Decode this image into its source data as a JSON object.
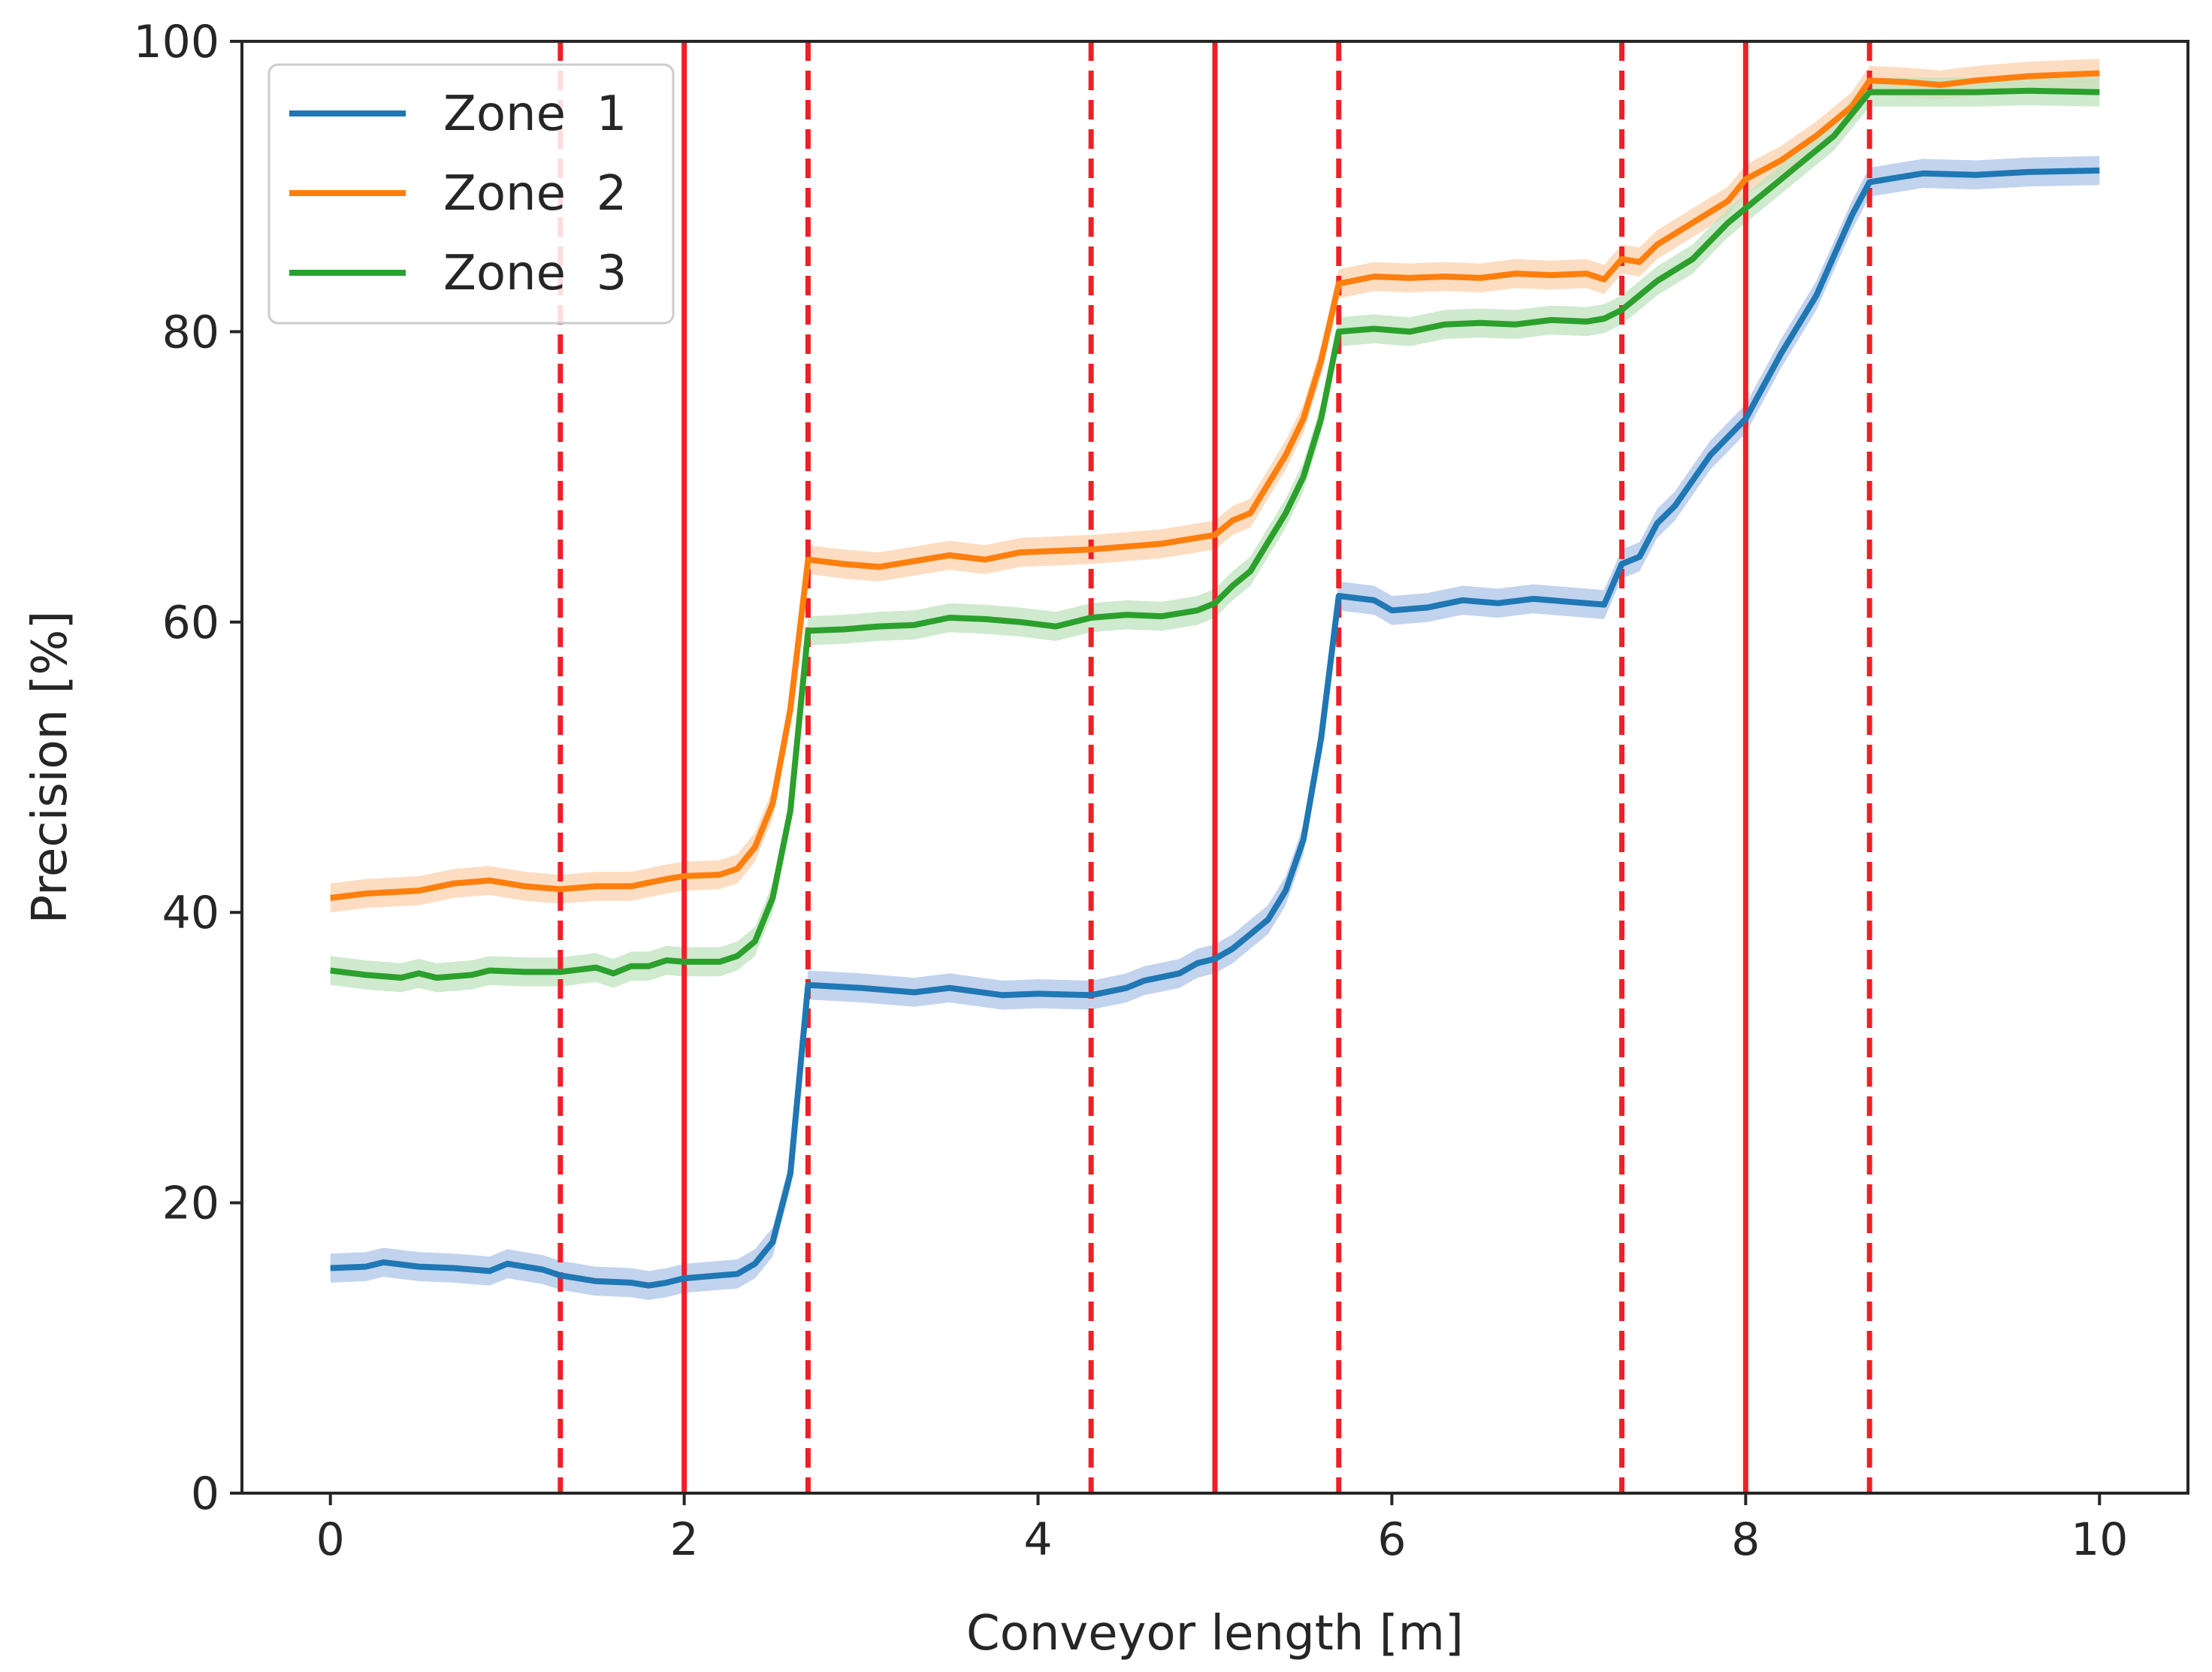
{
  "chart_data": {
    "type": "line",
    "xlabel": "Conveyor length [m]",
    "ylabel": "Precision [%]",
    "xlim": [
      -0.5,
      10.5
    ],
    "ylim": [
      0,
      100
    ],
    "xticks": [
      0,
      2,
      4,
      6,
      8,
      10
    ],
    "yticks": [
      0,
      20,
      40,
      60,
      80,
      100
    ],
    "grid": false,
    "legend_position": "top-left",
    "band_halfwidth": 1.0,
    "series": [
      {
        "name": "Zone  1",
        "color": "#1f77b4",
        "band_color": "#aec4e8",
        "points": [
          [
            0,
            15.5
          ],
          [
            0.2,
            15.6
          ],
          [
            0.3,
            15.9
          ],
          [
            0.5,
            15.6
          ],
          [
            0.7,
            15.5
          ],
          [
            0.9,
            15.3
          ],
          [
            1.0,
            15.8
          ],
          [
            1.2,
            15.4
          ],
          [
            1.3,
            15.0
          ],
          [
            1.5,
            14.6
          ],
          [
            1.7,
            14.5
          ],
          [
            1.8,
            14.3
          ],
          [
            1.9,
            14.5
          ],
          [
            2.0,
            14.8
          ],
          [
            2.2,
            15.0
          ],
          [
            2.3,
            15.1
          ],
          [
            2.4,
            15.8
          ],
          [
            2.5,
            17.3
          ],
          [
            2.6,
            22.0
          ],
          [
            2.7,
            35.0
          ],
          [
            3.0,
            34.8
          ],
          [
            3.3,
            34.5
          ],
          [
            3.5,
            34.8
          ],
          [
            3.8,
            34.3
          ],
          [
            4.0,
            34.4
          ],
          [
            4.3,
            34.3
          ],
          [
            4.5,
            34.8
          ],
          [
            4.6,
            35.3
          ],
          [
            4.8,
            35.8
          ],
          [
            4.9,
            36.5
          ],
          [
            5.0,
            36.8
          ],
          [
            5.1,
            37.5
          ],
          [
            5.2,
            38.5
          ],
          [
            5.3,
            39.5
          ],
          [
            5.4,
            41.5
          ],
          [
            5.5,
            45.0
          ],
          [
            5.6,
            52.0
          ],
          [
            5.7,
            61.8
          ],
          [
            5.9,
            61.5
          ],
          [
            6.0,
            60.8
          ],
          [
            6.2,
            61.0
          ],
          [
            6.4,
            61.5
          ],
          [
            6.6,
            61.3
          ],
          [
            6.8,
            61.6
          ],
          [
            7.0,
            61.4
          ],
          [
            7.2,
            61.2
          ],
          [
            7.3,
            64.0
          ],
          [
            7.4,
            64.5
          ],
          [
            7.5,
            66.8
          ],
          [
            7.6,
            68.0
          ],
          [
            7.8,
            71.5
          ],
          [
            8.0,
            74.0
          ],
          [
            8.2,
            78.5
          ],
          [
            8.4,
            82.5
          ],
          [
            8.6,
            88.0
          ],
          [
            8.7,
            90.3
          ],
          [
            9.0,
            90.9
          ],
          [
            9.3,
            90.8
          ],
          [
            9.6,
            91.0
          ],
          [
            10.0,
            91.1
          ]
        ]
      },
      {
        "name": "Zone  2",
        "color": "#ff7f0e",
        "band_color": "#fcd2ad",
        "points": [
          [
            0,
            41.0
          ],
          [
            0.2,
            41.3
          ],
          [
            0.5,
            41.5
          ],
          [
            0.7,
            42.0
          ],
          [
            0.9,
            42.2
          ],
          [
            1.1,
            41.8
          ],
          [
            1.3,
            41.6
          ],
          [
            1.5,
            41.8
          ],
          [
            1.7,
            41.8
          ],
          [
            1.9,
            42.3
          ],
          [
            2.0,
            42.5
          ],
          [
            2.2,
            42.6
          ],
          [
            2.3,
            43.0
          ],
          [
            2.4,
            44.5
          ],
          [
            2.5,
            47.5
          ],
          [
            2.6,
            54.0
          ],
          [
            2.7,
            64.3
          ],
          [
            2.9,
            64.0
          ],
          [
            3.1,
            63.8
          ],
          [
            3.3,
            64.2
          ],
          [
            3.5,
            64.6
          ],
          [
            3.7,
            64.3
          ],
          [
            3.9,
            64.8
          ],
          [
            4.1,
            64.9
          ],
          [
            4.3,
            65.0
          ],
          [
            4.5,
            65.2
          ],
          [
            4.7,
            65.4
          ],
          [
            4.9,
            65.8
          ],
          [
            5.0,
            66.0
          ],
          [
            5.1,
            67.0
          ],
          [
            5.2,
            67.5
          ],
          [
            5.3,
            69.5
          ],
          [
            5.4,
            71.5
          ],
          [
            5.5,
            74.0
          ],
          [
            5.6,
            78.0
          ],
          [
            5.7,
            83.3
          ],
          [
            5.9,
            83.8
          ],
          [
            6.1,
            83.7
          ],
          [
            6.3,
            83.8
          ],
          [
            6.5,
            83.7
          ],
          [
            6.7,
            84.0
          ],
          [
            6.9,
            83.9
          ],
          [
            7.1,
            84.0
          ],
          [
            7.2,
            83.6
          ],
          [
            7.3,
            85.0
          ],
          [
            7.4,
            84.8
          ],
          [
            7.5,
            86.0
          ],
          [
            7.7,
            87.5
          ],
          [
            7.9,
            89.0
          ],
          [
            8.0,
            90.5
          ],
          [
            8.2,
            91.8
          ],
          [
            8.4,
            93.5
          ],
          [
            8.6,
            95.5
          ],
          [
            8.7,
            97.3
          ],
          [
            8.9,
            97.2
          ],
          [
            9.1,
            97.0
          ],
          [
            9.3,
            97.3
          ],
          [
            9.6,
            97.6
          ],
          [
            10.0,
            97.8
          ]
        ]
      },
      {
        "name": "Zone  3",
        "color": "#2ca02c",
        "band_color": "#bfe3bf",
        "points": [
          [
            0,
            36.0
          ],
          [
            0.2,
            35.7
          ],
          [
            0.4,
            35.5
          ],
          [
            0.5,
            35.8
          ],
          [
            0.6,
            35.5
          ],
          [
            0.8,
            35.7
          ],
          [
            0.9,
            36.0
          ],
          [
            1.1,
            35.9
          ],
          [
            1.3,
            35.9
          ],
          [
            1.5,
            36.2
          ],
          [
            1.6,
            35.8
          ],
          [
            1.7,
            36.3
          ],
          [
            1.8,
            36.3
          ],
          [
            1.9,
            36.7
          ],
          [
            2.0,
            36.6
          ],
          [
            2.2,
            36.6
          ],
          [
            2.3,
            37.0
          ],
          [
            2.4,
            38.0
          ],
          [
            2.5,
            41.0
          ],
          [
            2.6,
            47.0
          ],
          [
            2.7,
            59.4
          ],
          [
            2.9,
            59.5
          ],
          [
            3.1,
            59.7
          ],
          [
            3.3,
            59.8
          ],
          [
            3.5,
            60.3
          ],
          [
            3.7,
            60.2
          ],
          [
            3.9,
            60.0
          ],
          [
            4.1,
            59.7
          ],
          [
            4.3,
            60.3
          ],
          [
            4.5,
            60.5
          ],
          [
            4.7,
            60.4
          ],
          [
            4.9,
            60.8
          ],
          [
            5.0,
            61.3
          ],
          [
            5.1,
            62.5
          ],
          [
            5.2,
            63.5
          ],
          [
            5.3,
            65.5
          ],
          [
            5.4,
            67.5
          ],
          [
            5.5,
            70.0
          ],
          [
            5.6,
            74.0
          ],
          [
            5.7,
            80.0
          ],
          [
            5.9,
            80.2
          ],
          [
            6.1,
            80.0
          ],
          [
            6.3,
            80.5
          ],
          [
            6.5,
            80.6
          ],
          [
            6.7,
            80.5
          ],
          [
            6.9,
            80.8
          ],
          [
            7.1,
            80.7
          ],
          [
            7.2,
            80.9
          ],
          [
            7.3,
            81.5
          ],
          [
            7.4,
            82.5
          ],
          [
            7.5,
            83.5
          ],
          [
            7.7,
            85.0
          ],
          [
            7.9,
            87.5
          ],
          [
            8.1,
            89.5
          ],
          [
            8.3,
            91.5
          ],
          [
            8.5,
            93.5
          ],
          [
            8.7,
            96.5
          ],
          [
            9.0,
            96.5
          ],
          [
            9.3,
            96.5
          ],
          [
            9.6,
            96.6
          ],
          [
            10.0,
            96.5
          ]
        ]
      }
    ],
    "vlines": [
      {
        "x": 1.3,
        "style": "dashed",
        "color": "#ee2027"
      },
      {
        "x": 2.0,
        "style": "solid",
        "color": "#ee2027"
      },
      {
        "x": 2.7,
        "style": "dashed",
        "color": "#ee2027"
      },
      {
        "x": 4.3,
        "style": "dashed",
        "color": "#ee2027"
      },
      {
        "x": 5.0,
        "style": "solid",
        "color": "#ee2027"
      },
      {
        "x": 5.7,
        "style": "dashed",
        "color": "#ee2027"
      },
      {
        "x": 7.3,
        "style": "dashed",
        "color": "#ee2027"
      },
      {
        "x": 8.0,
        "style": "solid",
        "color": "#ee2027"
      },
      {
        "x": 8.7,
        "style": "dashed",
        "color": "#ee2027"
      }
    ]
  }
}
